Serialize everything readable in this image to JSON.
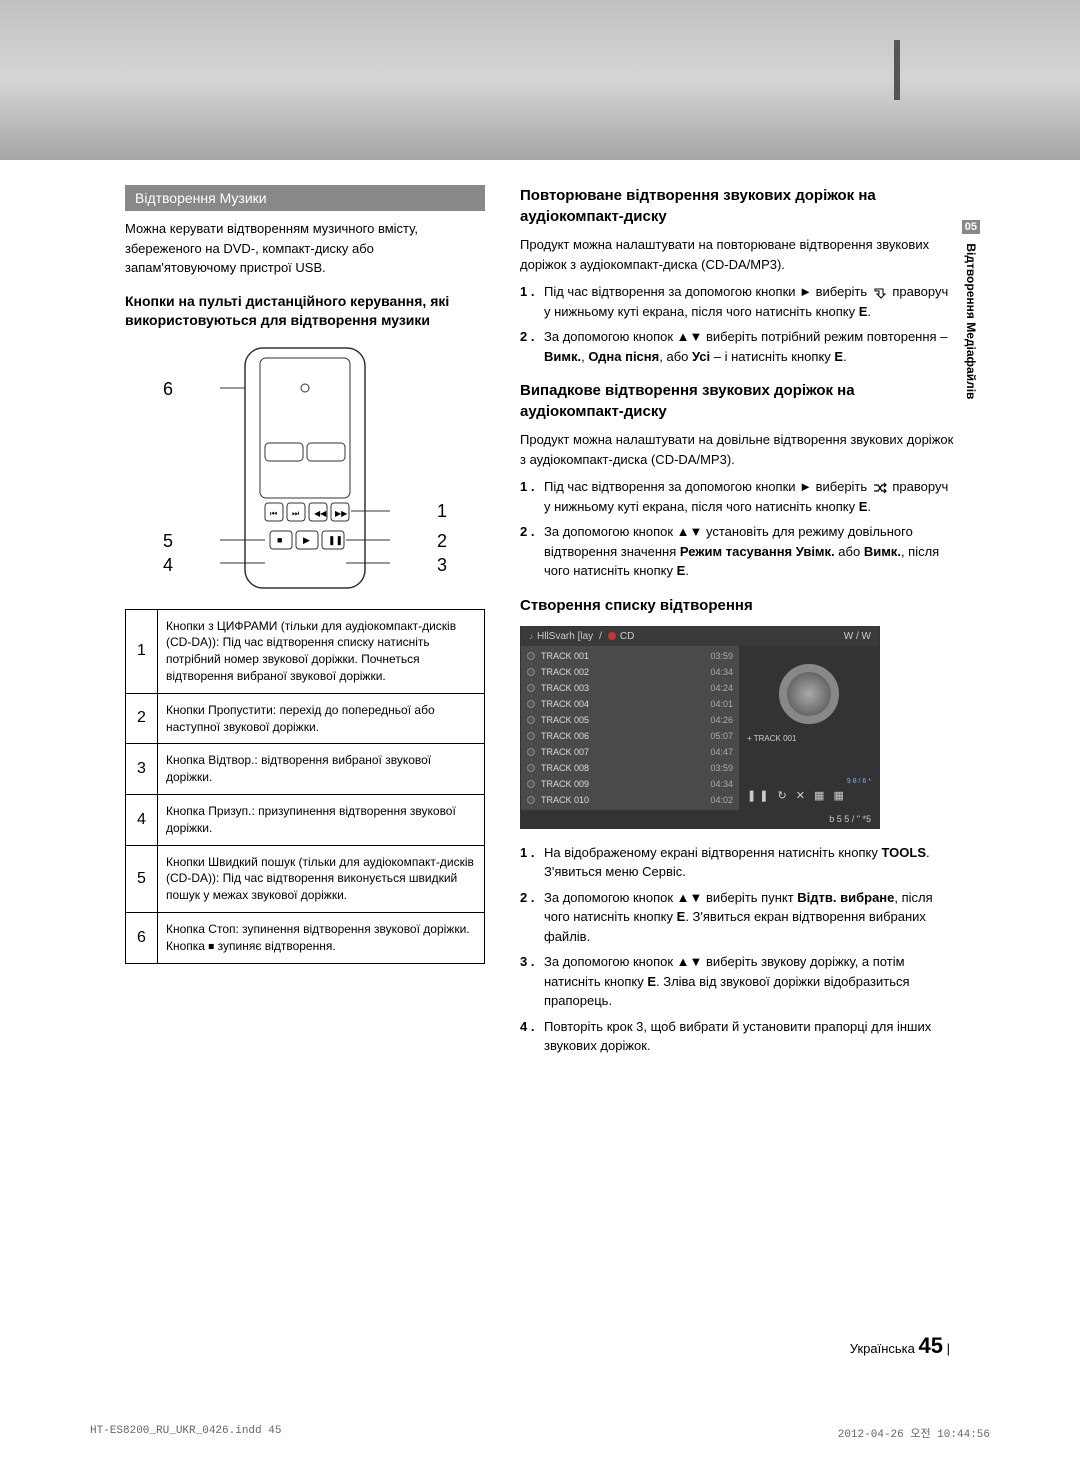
{
  "top_bar": {
    "accent_color": "#555555"
  },
  "side_tab": {
    "number": "05",
    "label": "Відтворення Медіафайлів"
  },
  "left": {
    "title": "Відтворення Музики",
    "intro": "Можна керувати відтворенням музичного вмісту, збереженого на DVD-, компакт-диску або запам'ятовуючому пристрої USB.",
    "subtitle": "Кнопки на пульті дистанційного керування, які використовуються для відтворення музики",
    "remote_numbers": [
      "1",
      "2",
      "3",
      "4",
      "5",
      "6"
    ],
    "table": [
      {
        "n": "1",
        "text": "Кнопки з ЦИФРАМИ (тільки для аудіокомпакт-дисків (CD-DA)): Під час відтворення списку натисніть потрібний номер звукової доріжки. Почнеться відтворення вибраної звукової доріжки."
      },
      {
        "n": "2",
        "text": "Кнопки Пропустити: перехід до попередньої або наступної звукової доріжки."
      },
      {
        "n": "3",
        "text": "Кнопка Відтвор.: відтворення вибраної звукової доріжки."
      },
      {
        "n": "4",
        "text": "Кнопка Призуп.: призупинення відтворення звукової доріжки."
      },
      {
        "n": "5",
        "text": "Кнопки Швидкий пошук (тільки для аудіокомпакт-дисків (CD-DA)): Під час відтворення виконується швидкий пошук у межах звукової доріжки."
      },
      {
        "n": "6",
        "text": "Кнопка Стоп: зупинення відтворення звукової доріжки. Кнопка ⏹ зупиняє відтворення."
      }
    ]
  },
  "right": {
    "s1_title": "Повторюване відтворення звукових доріжок на аудіокомпакт-диску",
    "s1_intro": "Продукт можна налаштувати на повторюване відтворення звукових доріжок з аудіокомпакт-диска (CD-DA/MP3).",
    "s1_steps": [
      {
        "n": "1 .",
        "html": "Під час відтворення за допомогою кнопки ► виберіть <svg class='inline-icon' width='14' height='12'><path d='M2,2 L10,2 L10,7 L12,7 L8,11 L4,7 L6,7 L6,4 L2,4 Z' fill='none' stroke='#000' stroke-width='1'/></svg> праворуч у нижньому куті екрана, після чого натисніть кнопку <b>E</b>."
      },
      {
        "n": "2 .",
        "html": "За допомогою кнопок ▲▼ виберіть потрібний режим повторення – <b>Вимк.</b>, <b>Одна пісня</b>, або <b>Усі</b> – і натисніть кнопку <b>E</b>."
      }
    ],
    "s2_title": "Випадкове відтворення звукових доріжок на аудіокомпакт-диску",
    "s2_intro": "Продукт можна налаштувати на довільне відтворення звукових доріжок з аудіокомпакт-диска (CD-DA/MP3).",
    "s2_steps": [
      {
        "n": "1 .",
        "html": "Під час відтворення за допомогою кнопки ► виберіть <svg class='inline-icon' width='14' height='12'><path d='M1,3 L5,3 L9,9 L13,9 M13,3 L9,3 L5,9 L1,9 M11,1 L13,3 L11,5 M11,7 L13,9 L11,11' fill='none' stroke='#000' stroke-width='1.2'/></svg> праворуч у нижньому куті екрана, після чого натисніть кнопку <b>E</b>."
      },
      {
        "n": "2 .",
        "html": "За допомогою кнопок ▲▼ установіть для режиму довільного відтворення значення <b>Режим тасування Увімк.</b> або <b>Вимк.</b>, після чого натисніть кнопку <b>E</b>."
      }
    ],
    "s3_title": "Створення списку відтворення",
    "playlist": {
      "header": "HllSvarh [lay",
      "header_right": "W / W",
      "disc_label": "CD",
      "tracks": [
        {
          "name": "TRACK 001",
          "time": "03:59"
        },
        {
          "name": "TRACK 002",
          "time": "04:34"
        },
        {
          "name": "TRACK 003",
          "time": "04:24"
        },
        {
          "name": "TRACK 004",
          "time": "04:01"
        },
        {
          "name": "TRACK 005",
          "time": "04:26"
        },
        {
          "name": "TRACK 006",
          "time": "05:07"
        },
        {
          "name": "TRACK 007",
          "time": "04:47"
        },
        {
          "name": "TRACK 008",
          "time": "03:59"
        },
        {
          "name": "TRACK 009",
          "time": "04:34"
        },
        {
          "name": "TRACK 010",
          "time": "04:02"
        }
      ],
      "now_playing": "+ TRACK 001",
      "footer": "b 5 5 / \" *5"
    },
    "s3_steps": [
      {
        "n": "1 .",
        "html": "На відображеному екрані відтворення натисніть кнопку <b>TOOLS</b>. З'явиться меню Сервіс."
      },
      {
        "n": "2 .",
        "html": "За допомогою кнопок ▲▼ виберіть пункт <b>Відтв. вибране</b>, після чого натисніть кнопку <b>E</b>. З'явиться екран відтворення вибраних файлів."
      },
      {
        "n": "3 .",
        "html": "За допомогою кнопок ▲▼ виберіть звукову доріжку, а потім натисніть кнопку <b>E</b>. Зліва від звукової доріжки відобразиться прапорець."
      },
      {
        "n": "4 .",
        "html": "Повторіть крок 3, щоб вибрати й установити прапорці для інших звукових доріжок."
      }
    ]
  },
  "footer": {
    "lang": "Українська",
    "page": "45",
    "doc_left": "HT-ES8200_RU_UKR_0426.indd   45",
    "doc_right": "2012-04-26   오전 10:44:56"
  }
}
